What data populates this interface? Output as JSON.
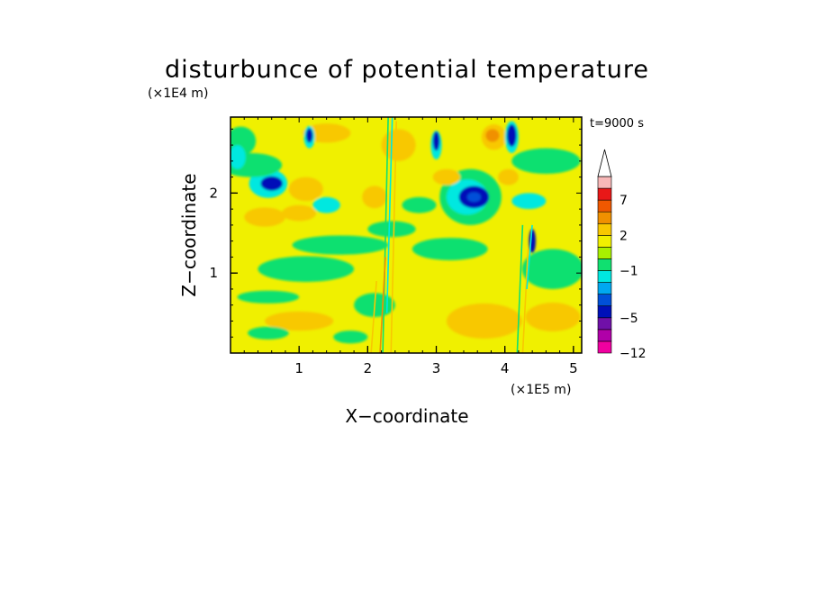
{
  "chart_data": {
    "type": "heatmap",
    "title": "disturbunce of potential temperature",
    "xlabel": "X−coordinate",
    "ylabel": "Z−coordinate",
    "x_unit": "(×1E5 m)",
    "y_unit": "(×1E4 m)",
    "time_label": "t=9000 s",
    "xlim": [
      0,
      5.12
    ],
    "ylim": [
      0,
      2.95
    ],
    "x_ticks": [
      1,
      2,
      3,
      4,
      5
    ],
    "x_tick_labels": [
      "1",
      "2",
      "3",
      "4",
      "5"
    ],
    "y_ticks": [
      1,
      2
    ],
    "y_tick_labels": [
      "1",
      "2"
    ],
    "colorbar": {
      "levels": [
        -12,
        -9,
        -7,
        -5,
        -4,
        -3,
        -2,
        -1,
        0,
        1,
        2,
        3,
        5,
        7,
        9,
        12
      ],
      "tick_values": [
        -12,
        -5,
        -1,
        2,
        7
      ],
      "tick_labels": [
        "−12",
        "−5",
        "−1",
        "2",
        "7"
      ],
      "colors": [
        "#f000a0",
        "#b000a8",
        "#7010a8",
        "#0010b8",
        "#0050d8",
        "#00a8f0",
        "#00e8e0",
        "#10e070",
        "#a8f000",
        "#f0f000",
        "#f8c800",
        "#f09000",
        "#f05800",
        "#e81818",
        "#f8b8b8"
      ],
      "extend_top_color": "#ffffff"
    },
    "background_level_color": "#f0f000",
    "features": [
      {
        "shape": "ellipse",
        "x": 0.55,
        "y": 2.12,
        "rx": 0.28,
        "ry": 0.18,
        "color": "#00e8e0"
      },
      {
        "shape": "ellipse",
        "x": 0.6,
        "y": 2.12,
        "rx": 0.16,
        "ry": 0.09,
        "color": "#0010b8"
      },
      {
        "shape": "ellipse",
        "x": 3.5,
        "y": 1.95,
        "rx": 0.45,
        "ry": 0.35,
        "color": "#10e070"
      },
      {
        "shape": "ellipse",
        "x": 3.45,
        "y": 1.95,
        "rx": 0.3,
        "ry": 0.22,
        "color": "#00e8e0"
      },
      {
        "shape": "ellipse",
        "x": 3.55,
        "y": 1.95,
        "rx": 0.22,
        "ry": 0.14,
        "color": "#0010b8"
      },
      {
        "shape": "ellipse",
        "x": 3.55,
        "y": 1.95,
        "rx": 0.1,
        "ry": 0.06,
        "color": "#0050d8"
      },
      {
        "shape": "ellipse",
        "x": 2.1,
        "y": 1.95,
        "rx": 0.18,
        "ry": 0.14,
        "color": "#f8c800"
      },
      {
        "shape": "ellipse",
        "x": 3.84,
        "y": 2.7,
        "rx": 0.18,
        "ry": 0.16,
        "color": "#f8c800"
      },
      {
        "shape": "ellipse",
        "x": 3.82,
        "y": 2.72,
        "rx": 0.1,
        "ry": 0.08,
        "color": "#f09000"
      },
      {
        "shape": "ellipse",
        "x": 0.15,
        "y": 2.65,
        "rx": 0.22,
        "ry": 0.18,
        "color": "#10e070"
      },
      {
        "shape": "ellipse",
        "x": 0.3,
        "y": 2.35,
        "rx": 0.45,
        "ry": 0.15,
        "color": "#10e070"
      },
      {
        "shape": "ellipse",
        "x": 1.1,
        "y": 1.05,
        "rx": 0.7,
        "ry": 0.16,
        "color": "#10e070"
      },
      {
        "shape": "ellipse",
        "x": 1.6,
        "y": 1.35,
        "rx": 0.7,
        "ry": 0.12,
        "color": "#10e070"
      },
      {
        "shape": "ellipse",
        "x": 3.2,
        "y": 1.3,
        "rx": 0.55,
        "ry": 0.14,
        "color": "#10e070"
      },
      {
        "shape": "ellipse",
        "x": 4.7,
        "y": 1.05,
        "rx": 0.45,
        "ry": 0.25,
        "color": "#10e070"
      },
      {
        "shape": "ellipse",
        "x": 4.6,
        "y": 2.4,
        "rx": 0.5,
        "ry": 0.16,
        "color": "#10e070"
      },
      {
        "shape": "ellipse",
        "x": 0.55,
        "y": 0.7,
        "rx": 0.45,
        "ry": 0.08,
        "color": "#10e070"
      },
      {
        "shape": "ellipse",
        "x": 2.1,
        "y": 0.6,
        "rx": 0.3,
        "ry": 0.15,
        "color": "#10e070"
      },
      {
        "shape": "ellipse",
        "x": 3.7,
        "y": 0.4,
        "rx": 0.55,
        "ry": 0.22,
        "color": "#f8c800"
      },
      {
        "shape": "ellipse",
        "x": 4.7,
        "y": 0.45,
        "rx": 0.4,
        "ry": 0.18,
        "color": "#f8c800"
      },
      {
        "shape": "ellipse",
        "x": 1.1,
        "y": 2.05,
        "rx": 0.25,
        "ry": 0.15,
        "color": "#f8c800"
      },
      {
        "shape": "ellipse",
        "x": 1.0,
        "y": 1.75,
        "rx": 0.25,
        "ry": 0.1,
        "color": "#f8c800"
      },
      {
        "shape": "ellipse",
        "x": 2.45,
        "y": 2.6,
        "rx": 0.25,
        "ry": 0.2,
        "color": "#f8c800"
      },
      {
        "shape": "ellipse",
        "x": 0.5,
        "y": 1.7,
        "rx": 0.3,
        "ry": 0.12,
        "color": "#f8c800"
      },
      {
        "shape": "ellipse",
        "x": 1.4,
        "y": 2.75,
        "rx": 0.35,
        "ry": 0.12,
        "color": "#f8c800"
      },
      {
        "shape": "ellipse",
        "x": 1.0,
        "y": 0.4,
        "rx": 0.5,
        "ry": 0.12,
        "color": "#f8c800"
      },
      {
        "shape": "ellipse",
        "x": 4.1,
        "y": 2.7,
        "rx": 0.1,
        "ry": 0.2,
        "color": "#00e8e0"
      },
      {
        "shape": "ellipse",
        "x": 4.1,
        "y": 2.72,
        "rx": 0.07,
        "ry": 0.14,
        "color": "#0010b8"
      },
      {
        "shape": "ellipse",
        "x": 3.0,
        "y": 2.6,
        "rx": 0.08,
        "ry": 0.18,
        "color": "#00e8e0"
      },
      {
        "shape": "ellipse",
        "x": 3.0,
        "y": 2.65,
        "rx": 0.05,
        "ry": 0.12,
        "color": "#0010b8"
      },
      {
        "shape": "ellipse",
        "x": 1.15,
        "y": 2.7,
        "rx": 0.08,
        "ry": 0.14,
        "color": "#00e8e0"
      },
      {
        "shape": "ellipse",
        "x": 1.15,
        "y": 2.72,
        "rx": 0.05,
        "ry": 0.09,
        "color": "#0010b8"
      },
      {
        "shape": "ellipse",
        "x": 0.1,
        "y": 2.45,
        "rx": 0.12,
        "ry": 0.15,
        "color": "#00e8e0"
      },
      {
        "shape": "ellipse",
        "x": 1.4,
        "y": 1.85,
        "rx": 0.2,
        "ry": 0.1,
        "color": "#00e8e0"
      },
      {
        "shape": "ellipse",
        "x": 4.35,
        "y": 1.9,
        "rx": 0.25,
        "ry": 0.1,
        "color": "#00e8e0"
      },
      {
        "shape": "ellipse",
        "x": 4.4,
        "y": 1.4,
        "rx": 0.05,
        "ry": 0.15,
        "color": "#0010b8"
      },
      {
        "shape": "ellipse",
        "x": 2.35,
        "y": 1.55,
        "rx": 0.35,
        "ry": 0.1,
        "color": "#10e070"
      },
      {
        "shape": "ellipse",
        "x": 3.15,
        "y": 2.2,
        "rx": 0.2,
        "ry": 0.1,
        "color": "#f8c800"
      },
      {
        "shape": "ellipse",
        "x": 4.05,
        "y": 2.2,
        "rx": 0.15,
        "ry": 0.1,
        "color": "#f8c800"
      },
      {
        "shape": "ellipse",
        "x": 2.75,
        "y": 1.85,
        "rx": 0.25,
        "ry": 0.1,
        "color": "#10e070"
      },
      {
        "shape": "ellipse",
        "x": 0.55,
        "y": 0.25,
        "rx": 0.3,
        "ry": 0.08,
        "color": "#10e070"
      },
      {
        "shape": "ellipse",
        "x": 1.75,
        "y": 0.2,
        "rx": 0.25,
        "ry": 0.08,
        "color": "#10e070"
      }
    ],
    "vertical_streaks": [
      {
        "x": 2.22,
        "y0": 0,
        "y1": 2.95,
        "color": "#10e070"
      },
      {
        "x": 2.28,
        "y0": 0.5,
        "y1": 2.95,
        "color": "#00e8e0"
      },
      {
        "x": 2.34,
        "y0": 0,
        "y1": 2.9,
        "color": "#f8c800"
      },
      {
        "x": 2.18,
        "y0": 0,
        "y1": 1.2,
        "color": "#f09000"
      },
      {
        "x": 4.18,
        "y0": 0,
        "y1": 1.6,
        "color": "#10e070"
      },
      {
        "x": 4.26,
        "y0": 0,
        "y1": 1.3,
        "color": "#f8c800"
      },
      {
        "x": 4.32,
        "y0": 0.8,
        "y1": 1.6,
        "color": "#00e8e0"
      },
      {
        "x": 2.05,
        "y0": 0,
        "y1": 0.9,
        "color": "#f8c800"
      }
    ]
  }
}
